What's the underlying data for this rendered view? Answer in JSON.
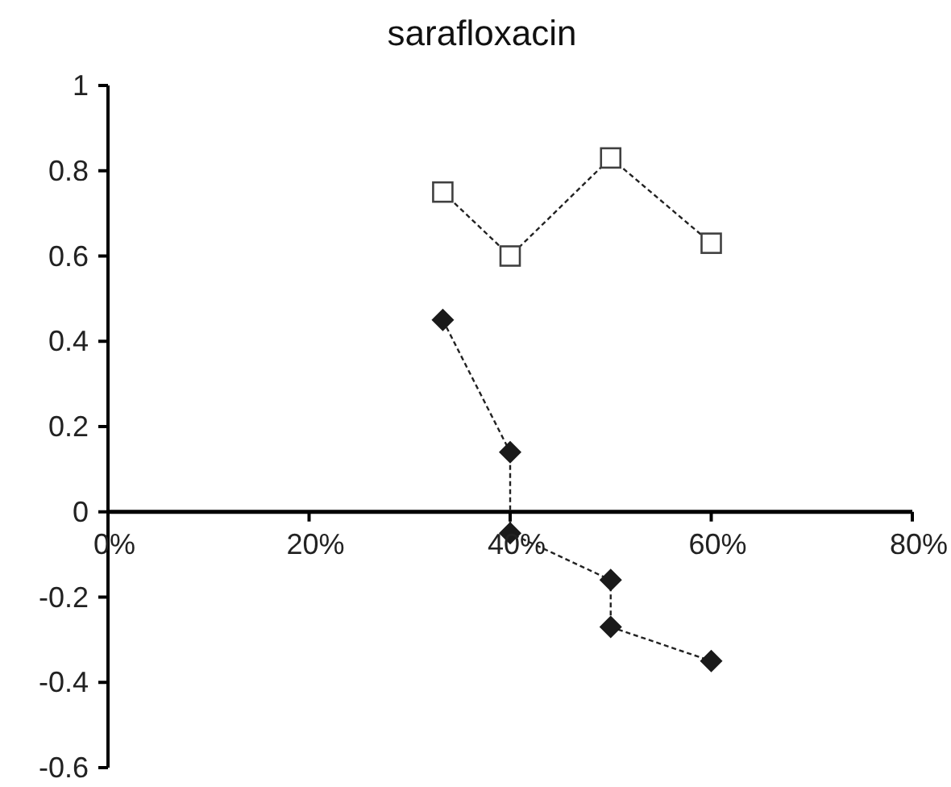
{
  "chart_data": {
    "type": "line",
    "title": "sarafloxacin",
    "xlim": [
      0,
      80
    ],
    "xticks": [
      {
        "value": 0,
        "label": "0%"
      },
      {
        "value": 20,
        "label": "20%"
      },
      {
        "value": 40,
        "label": "40%"
      },
      {
        "value": 60,
        "label": "60%"
      },
      {
        "value": 80,
        "label": "80%"
      }
    ],
    "ylim": [
      -0.6,
      1
    ],
    "yticks": [
      -0.6,
      -0.4,
      -0.2,
      0,
      0.2,
      0.4,
      0.6,
      0.8,
      1
    ],
    "line_style": "dashed",
    "series": [
      {
        "color": "#404040",
        "marker": "square",
        "x": [
          33.3,
          40,
          50,
          60
        ],
        "values": [
          0.75,
          0.6,
          0.83,
          0.63
        ]
      },
      {
        "color": "#1a1a1a",
        "marker": "diamond",
        "x": [
          33.3,
          40,
          40,
          50,
          50,
          60
        ],
        "values": [
          0.45,
          0.14,
          -0.05,
          -0.16,
          -0.27,
          -0.35
        ]
      }
    ]
  }
}
